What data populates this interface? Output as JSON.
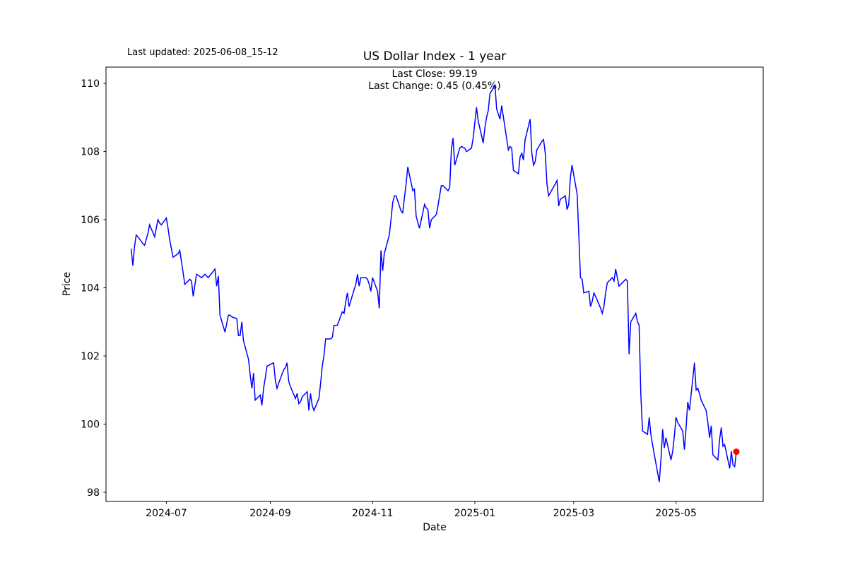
{
  "figure": {
    "last_updated": "Last updated: 2025-06-08_15-12",
    "title": "US Dollar Index - 1 year",
    "last_close_line": "Last Close: 99.19",
    "last_change_line": "Last Change: 0.45 (0.45%)",
    "xlabel": "Date",
    "ylabel": "Price"
  },
  "chart_data": {
    "type": "line",
    "title": "US Dollar Index - 1 year",
    "xlabel": "Date",
    "ylabel": "Price",
    "annotations": [
      "Last Close: 99.19",
      "Last Change: 0.45 (0.45%)"
    ],
    "last_close": 99.19,
    "last_change": 0.45,
    "last_change_pct": "0.45%",
    "line_color": "#0000ff",
    "marker_color": "#ff0000",
    "grid": false,
    "legend_position": "none",
    "x_ticks": [
      "2024-07",
      "2024-09",
      "2024-11",
      "2025-01",
      "2025-03",
      "2025-05"
    ],
    "y_ticks": [
      98,
      100,
      102,
      104,
      106,
      108,
      110
    ],
    "x_domain": [
      "2024-05-26",
      "2025-06-22"
    ],
    "y_domain": [
      97.73,
      110.48
    ],
    "series": [
      {
        "name": "US Dollar Index",
        "dates": [
          "2024-06-10",
          "2024-06-11",
          "2024-06-12",
          "2024-06-13",
          "2024-06-14",
          "2024-06-17",
          "2024-06-18",
          "2024-06-20",
          "2024-06-21",
          "2024-06-24",
          "2024-06-26",
          "2024-06-27",
          "2024-06-28",
          "2024-07-01",
          "2024-07-02",
          "2024-07-03",
          "2024-07-05",
          "2024-07-08",
          "2024-07-09",
          "2024-07-11",
          "2024-07-12",
          "2024-07-15",
          "2024-07-16",
          "2024-07-17",
          "2024-07-19",
          "2024-07-22",
          "2024-07-24",
          "2024-07-26",
          "2024-07-30",
          "2024-07-31",
          "2024-08-01",
          "2024-08-02",
          "2024-08-05",
          "2024-08-06",
          "2024-08-07",
          "2024-08-08",
          "2024-08-09",
          "2024-08-12",
          "2024-08-13",
          "2024-08-14",
          "2024-08-15",
          "2024-08-16",
          "2024-08-19",
          "2024-08-20",
          "2024-08-21",
          "2024-08-22",
          "2024-08-23",
          "2024-08-26",
          "2024-08-27",
          "2024-08-28",
          "2024-08-29",
          "2024-08-30",
          "2024-09-03",
          "2024-09-04",
          "2024-09-05",
          "2024-09-06",
          "2024-09-09",
          "2024-09-10",
          "2024-09-11",
          "2024-09-12",
          "2024-09-13",
          "2024-09-16",
          "2024-09-17",
          "2024-09-18",
          "2024-09-19",
          "2024-09-20",
          "2024-09-23",
          "2024-09-24",
          "2024-09-25",
          "2024-09-26",
          "2024-09-27",
          "2024-09-30",
          "2024-10-01",
          "2024-10-02",
          "2024-10-03",
          "2024-10-04",
          "2024-10-07",
          "2024-10-08",
          "2024-10-09",
          "2024-10-11",
          "2024-10-14",
          "2024-10-15",
          "2024-10-16",
          "2024-10-17",
          "2024-10-18",
          "2024-10-21",
          "2024-10-22",
          "2024-10-23",
          "2024-10-24",
          "2024-10-25",
          "2024-10-28",
          "2024-10-29",
          "2024-10-30",
          "2024-10-31",
          "2024-11-01",
          "2024-11-04",
          "2024-11-05",
          "2024-11-06",
          "2024-11-07",
          "2024-11-08",
          "2024-11-11",
          "2024-11-12",
          "2024-11-13",
          "2024-11-14",
          "2024-11-15",
          "2024-11-18",
          "2024-11-19",
          "2024-11-20",
          "2024-11-21",
          "2024-11-22",
          "2024-11-25",
          "2024-11-26",
          "2024-11-27",
          "2024-11-29",
          "2024-12-02",
          "2024-12-03",
          "2024-12-04",
          "2024-12-05",
          "2024-12-06",
          "2024-12-09",
          "2024-12-10",
          "2024-12-11",
          "2024-12-12",
          "2024-12-13",
          "2024-12-16",
          "2024-12-17",
          "2024-12-18",
          "2024-12-19",
          "2024-12-20",
          "2024-12-23",
          "2024-12-24",
          "2024-12-26",
          "2024-12-27",
          "2024-12-30",
          "2024-12-31",
          "2025-01-02",
          "2025-01-03",
          "2025-01-06",
          "2025-01-07",
          "2025-01-08",
          "2025-01-09",
          "2025-01-10",
          "2025-01-13",
          "2025-01-14",
          "2025-01-15",
          "2025-01-16",
          "2025-01-17",
          "2025-01-21",
          "2025-01-22",
          "2025-01-23",
          "2025-01-24",
          "2025-01-27",
          "2025-01-28",
          "2025-01-29",
          "2025-01-30",
          "2025-01-31",
          "2025-02-03",
          "2025-02-04",
          "2025-02-05",
          "2025-02-06",
          "2025-02-07",
          "2025-02-10",
          "2025-02-11",
          "2025-02-12",
          "2025-02-13",
          "2025-02-14",
          "2025-02-18",
          "2025-02-19",
          "2025-02-20",
          "2025-02-21",
          "2025-02-24",
          "2025-02-25",
          "2025-02-26",
          "2025-02-27",
          "2025-02-28",
          "2025-03-03",
          "2025-03-04",
          "2025-03-05",
          "2025-03-06",
          "2025-03-07",
          "2025-03-10",
          "2025-03-11",
          "2025-03-12",
          "2025-03-13",
          "2025-03-14",
          "2025-03-17",
          "2025-03-18",
          "2025-03-19",
          "2025-03-20",
          "2025-03-21",
          "2025-03-24",
          "2025-03-25",
          "2025-03-26",
          "2025-03-27",
          "2025-03-28",
          "2025-03-31",
          "2025-04-01",
          "2025-04-02",
          "2025-04-03",
          "2025-04-04",
          "2025-04-07",
          "2025-04-08",
          "2025-04-09",
          "2025-04-10",
          "2025-04-11",
          "2025-04-14",
          "2025-04-15",
          "2025-04-16",
          "2025-04-17",
          "2025-04-21",
          "2025-04-22",
          "2025-04-23",
          "2025-04-24",
          "2025-04-25",
          "2025-04-28",
          "2025-04-29",
          "2025-04-30",
          "2025-05-01",
          "2025-05-02",
          "2025-05-05",
          "2025-05-06",
          "2025-05-07",
          "2025-05-08",
          "2025-05-09",
          "2025-05-12",
          "2025-05-13",
          "2025-05-14",
          "2025-05-15",
          "2025-05-16",
          "2025-05-19",
          "2025-05-20",
          "2025-05-21",
          "2025-05-22",
          "2025-05-23",
          "2025-05-26",
          "2025-05-27",
          "2025-05-28",
          "2025-05-29",
          "2025-05-30",
          "2025-06-02",
          "2025-06-03",
          "2025-06-04",
          "2025-06-05",
          "2025-06-06"
        ],
        "values": [
          105.15,
          104.65,
          105.2,
          105.55,
          105.5,
          105.3,
          105.25,
          105.6,
          105.85,
          105.5,
          106.0,
          105.9,
          105.85,
          106.05,
          105.75,
          105.4,
          104.9,
          105.0,
          105.1,
          104.45,
          104.1,
          104.25,
          104.2,
          103.75,
          104.4,
          104.3,
          104.4,
          104.3,
          104.55,
          104.05,
          104.35,
          103.2,
          102.7,
          102.95,
          103.2,
          103.2,
          103.15,
          103.1,
          102.6,
          102.6,
          103.0,
          102.45,
          101.9,
          101.45,
          101.05,
          101.5,
          100.7,
          100.85,
          100.55,
          101.05,
          101.35,
          101.7,
          101.8,
          101.3,
          101.05,
          101.2,
          101.6,
          101.65,
          101.8,
          101.25,
          101.1,
          100.75,
          100.9,
          100.6,
          100.65,
          100.8,
          100.95,
          100.4,
          100.9,
          100.55,
          100.4,
          100.75,
          101.2,
          101.7,
          102.0,
          102.5,
          102.5,
          102.55,
          102.9,
          102.9,
          103.3,
          103.25,
          103.6,
          103.85,
          103.45,
          103.95,
          104.1,
          104.4,
          104.05,
          104.3,
          104.3,
          104.25,
          104.1,
          103.9,
          104.3,
          103.9,
          103.4,
          105.1,
          104.5,
          105.0,
          105.55,
          106.0,
          106.5,
          106.7,
          106.7,
          106.25,
          106.2,
          106.65,
          107.05,
          107.55,
          106.85,
          106.9,
          106.1,
          105.75,
          106.45,
          106.35,
          106.3,
          105.75,
          106.0,
          106.15,
          106.4,
          106.7,
          107.0,
          107.0,
          106.85,
          106.95,
          108.05,
          108.4,
          107.6,
          108.1,
          108.15,
          108.1,
          108.0,
          108.1,
          108.4,
          109.3,
          108.9,
          108.25,
          108.7,
          109.0,
          109.2,
          109.7,
          109.95,
          109.25,
          109.1,
          108.95,
          109.35,
          108.05,
          108.15,
          108.1,
          107.45,
          107.35,
          107.85,
          107.95,
          107.75,
          108.35,
          108.95,
          107.95,
          107.6,
          107.7,
          108.05,
          108.3,
          108.35,
          107.95,
          107.05,
          106.7,
          107.05,
          107.15,
          106.4,
          106.6,
          106.7,
          106.3,
          106.45,
          107.25,
          107.6,
          106.75,
          105.6,
          104.3,
          104.25,
          103.85,
          103.9,
          103.45,
          103.6,
          103.85,
          103.75,
          103.4,
          103.25,
          103.45,
          103.85,
          104.15,
          104.3,
          104.2,
          104.55,
          104.3,
          104.05,
          104.2,
          104.25,
          104.2,
          102.05,
          103.0,
          103.25,
          103.0,
          102.9,
          100.9,
          99.8,
          99.7,
          100.2,
          99.7,
          99.4,
          98.3,
          98.95,
          99.85,
          99.3,
          99.6,
          98.95,
          99.2,
          99.65,
          100.2,
          100.05,
          99.8,
          99.25,
          99.9,
          100.65,
          100.4,
          101.8,
          101.0,
          101.05,
          100.9,
          100.7,
          100.4,
          100.05,
          99.6,
          99.95,
          99.1,
          98.95,
          99.55,
          99.9,
          99.35,
          99.4,
          98.7,
          99.2,
          98.8,
          98.75,
          99.19
        ]
      }
    ]
  }
}
